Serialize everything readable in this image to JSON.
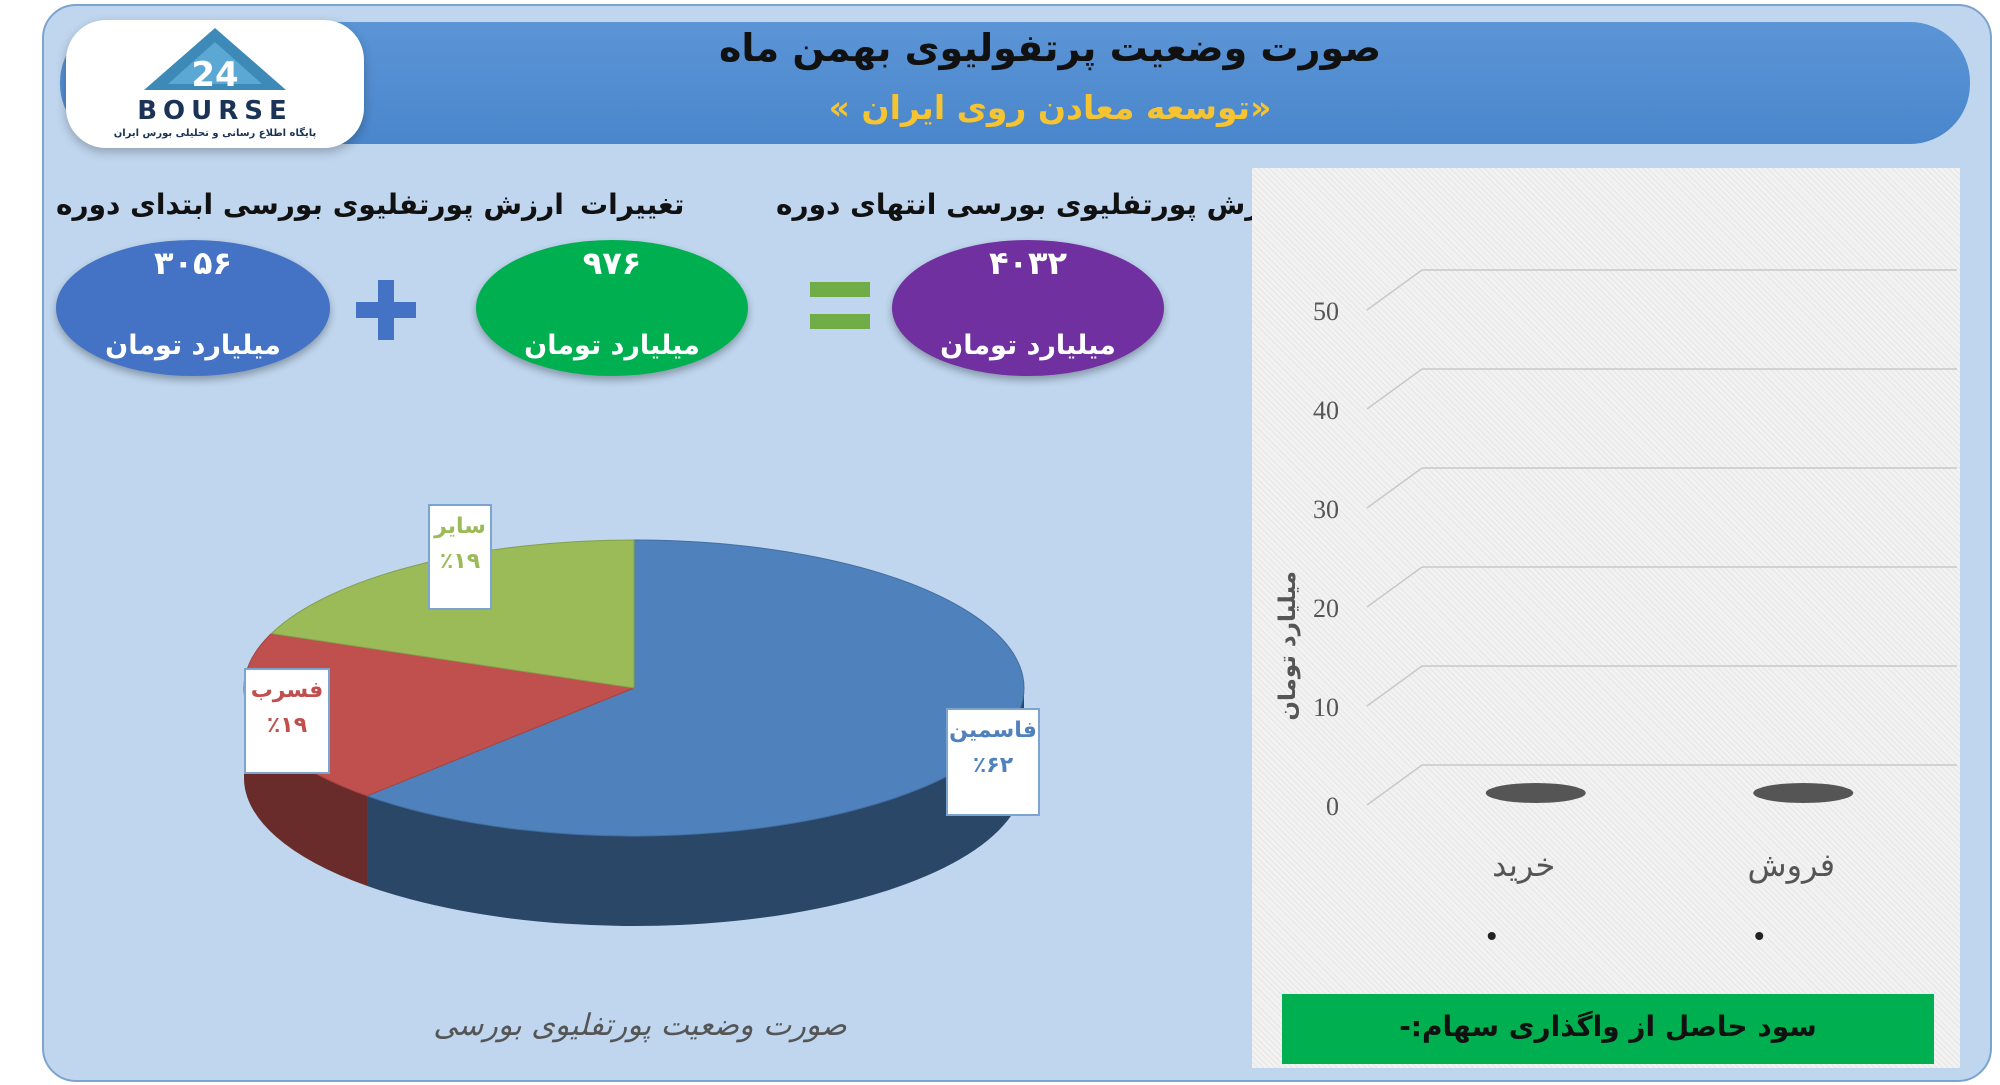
{
  "header": {
    "title": "صورت وضعیت پرتفولیوی بهمن ماه",
    "subtitle": "«توسعه معادن روی ایران »"
  },
  "logo": {
    "word": "BOURSE",
    "tagline": "پایگاه اطلاع رسانی و تحلیلی بورس ایران"
  },
  "summary": {
    "start": {
      "label": "ارزش پورتفلیوی بورسی ابتدای دوره",
      "value": "۳۰۵۶",
      "unit": "میلیارد تومان",
      "color": "#4472c4"
    },
    "change": {
      "label": "تغییرات",
      "value": "۹۷۶",
      "unit": "میلیارد تومان",
      "color": "#00b050"
    },
    "end": {
      "label": "ارزش پورتفلیوی بورسی انتهای دوره",
      "value": "۴۰۳۲",
      "unit": "میلیارد تومان",
      "color": "#7030a0"
    }
  },
  "operators": {
    "plus_icon": "plus-icon",
    "equals_icon": "equals-icon",
    "plus_color": "#4472c4",
    "equals_color": "#70ad47"
  },
  "chart_data": [
    {
      "type": "pie",
      "title": "صورت وضعیت پورتفلیوی بورسی",
      "slices": [
        {
          "name": "فاسمین",
          "value": 62,
          "label": "٪۶۲",
          "color": "#4f81bd"
        },
        {
          "name": "فسرب",
          "value": 19,
          "label": "٪۱۹",
          "color": "#c0504d"
        },
        {
          "name": "سایر",
          "value": 19,
          "label": "٪۱۹",
          "color": "#9bbb59"
        }
      ]
    },
    {
      "type": "bar",
      "categories": [
        "خرید",
        "فروش"
      ],
      "values": [
        0,
        0
      ],
      "ylabel": "میلیارد تومان",
      "ylim": [
        0,
        50
      ],
      "yticks": [
        "0",
        "10",
        "20",
        "30",
        "40",
        "50"
      ],
      "grid": true,
      "bar_color": "#555555"
    }
  ],
  "footer_note": "سود حاصل از واگذاری سهام:-"
}
